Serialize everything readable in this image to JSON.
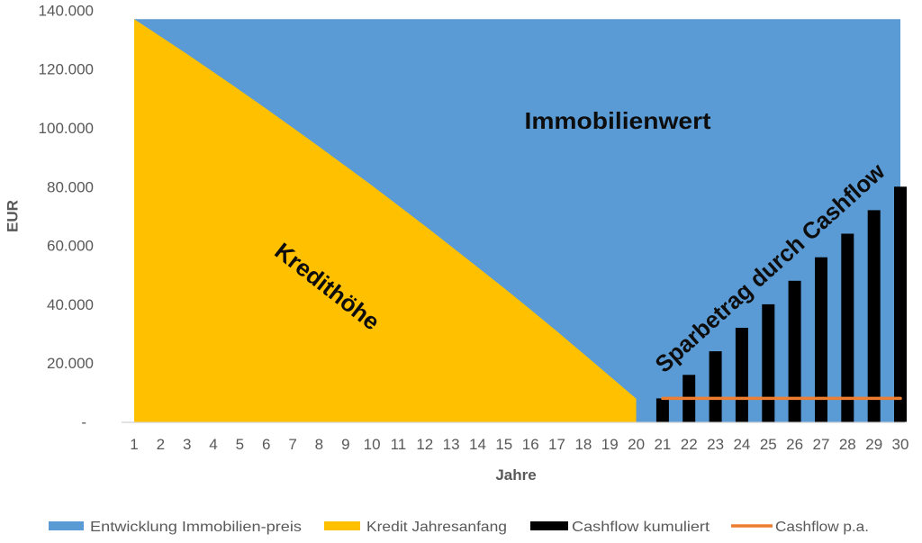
{
  "chart_data": {
    "type": "area",
    "title": "",
    "xlabel": "Jahre",
    "ylabel": "EUR",
    "ylim": [
      0,
      140000
    ],
    "grid": false,
    "legend_position": "bottom",
    "categories": [
      1,
      2,
      3,
      4,
      5,
      6,
      7,
      8,
      9,
      10,
      11,
      12,
      13,
      14,
      15,
      16,
      17,
      18,
      19,
      20,
      21,
      22,
      23,
      24,
      25,
      26,
      27,
      28,
      29,
      30
    ],
    "yticks": [
      0,
      20000,
      40000,
      60000,
      80000,
      100000,
      120000,
      140000
    ],
    "ytick_labels": [
      "-",
      "20.000",
      "40.000",
      "60.000",
      "80.000",
      "100.000",
      "120.000",
      "140.000"
    ],
    "series": [
      {
        "name": "Entwicklung Immobilien-preis",
        "type": "area",
        "color": "#5B9BD5",
        "values": [
          137000,
          137000,
          137000,
          137000,
          137000,
          137000,
          137000,
          137000,
          137000,
          137000,
          137000,
          137000,
          137000,
          137000,
          137000,
          137000,
          137000,
          137000,
          137000,
          137000,
          137000,
          137000,
          137000,
          137000,
          137000,
          137000,
          137000,
          137000,
          137000,
          137000
        ]
      },
      {
        "name": "Kredit Jahresanfang",
        "type": "area",
        "color": "#FFC000",
        "values": [
          137000,
          131100,
          125100,
          119000,
          112800,
          106500,
          100100,
          93600,
          87000,
          80400,
          73600,
          66700,
          59700,
          52600,
          45500,
          38200,
          30800,
          23200,
          15600,
          7900,
          null,
          null,
          null,
          null,
          null,
          null,
          null,
          null,
          null,
          null
        ]
      },
      {
        "name": "Cashflow kumuliert",
        "type": "bar",
        "color": "#000000",
        "values": [
          null,
          null,
          null,
          null,
          null,
          null,
          null,
          null,
          null,
          null,
          null,
          null,
          null,
          null,
          null,
          null,
          null,
          null,
          null,
          null,
          8000,
          16000,
          24000,
          32000,
          40000,
          48000,
          56000,
          64000,
          72000,
          80000
        ]
      },
      {
        "name": "Cashflow p.a.",
        "type": "line",
        "color": "#ED7D31",
        "values": [
          null,
          null,
          null,
          null,
          null,
          null,
          null,
          null,
          null,
          null,
          null,
          null,
          null,
          null,
          null,
          null,
          null,
          null,
          null,
          null,
          8000,
          8000,
          8000,
          8000,
          8000,
          8000,
          8000,
          8000,
          8000,
          8000
        ]
      }
    ],
    "annotations": [
      {
        "text": "Immobilienwert"
      },
      {
        "text": "Kredithöhe"
      },
      {
        "text": "Sparbetrag durch Cashflow"
      }
    ]
  }
}
